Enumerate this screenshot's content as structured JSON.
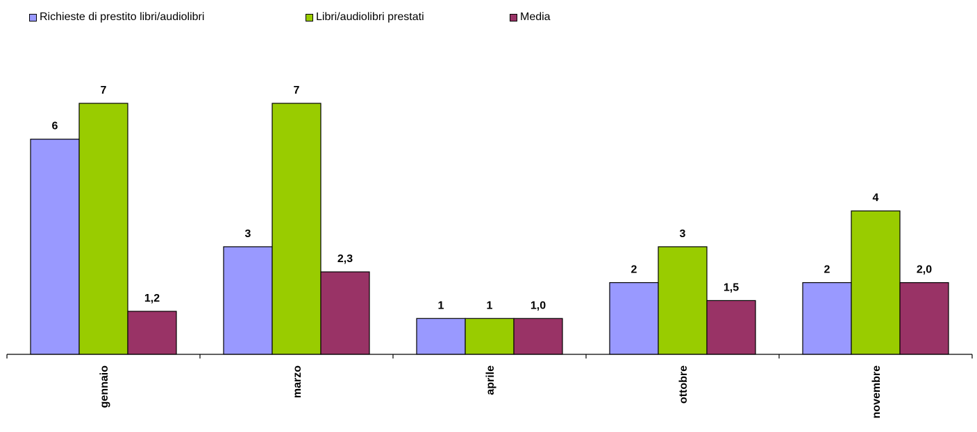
{
  "chart_data": {
    "type": "bar",
    "categories": [
      "gennaio",
      "marzo",
      "aprile",
      "ottobre",
      "novembre"
    ],
    "series": [
      {
        "name": "Richieste di prestito libri/audiolibri",
        "color": "#9999ff",
        "values": [
          6,
          3,
          1,
          2,
          2
        ],
        "labels": [
          "6",
          "3",
          "1",
          "2",
          "2"
        ]
      },
      {
        "name": "Libri/audiolibri prestati",
        "color": "#99cc00",
        "values": [
          7,
          7,
          1,
          3,
          4
        ],
        "labels": [
          "7",
          "7",
          "1",
          "3",
          "4"
        ]
      },
      {
        "name": "Media",
        "color": "#993366",
        "values": [
          1.2,
          2.3,
          1.0,
          1.5,
          2.0
        ],
        "labels": [
          "1,2",
          "2,3",
          "1,0",
          "1,5",
          "2,0"
        ]
      }
    ],
    "ylim": [
      0,
      7
    ],
    "grid": false,
    "legend_position": "top-left",
    "title": "",
    "xlabel": "",
    "ylabel": ""
  }
}
